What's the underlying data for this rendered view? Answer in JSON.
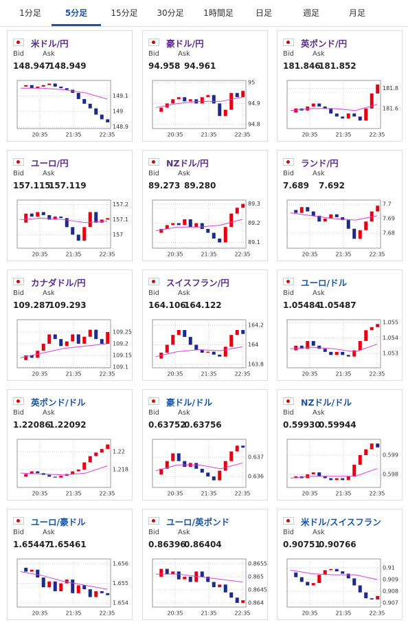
{
  "tabs": [
    "1分足",
    "5分足",
    "15分足",
    "30分足",
    "1時間足",
    "日足",
    "週足",
    "月足"
  ],
  "active_tab": 1,
  "bid_label": "Bid",
  "ask_label": "Ask",
  "x_labels": [
    "20:35",
    "21:35",
    "22:35"
  ],
  "up_color": "#e60012",
  "down_color": "#1c2a8c",
  "ma_color": "#d63fd6",
  "cards": [
    {
      "title": "米ドル/円",
      "color": "#5b2c8f",
      "bid": "148.947",
      "ask": "148.949",
      "ylim": [
        148.89,
        149.2
      ],
      "yticks": [
        149.1,
        149,
        148.9
      ],
      "closes": [
        149.16,
        149.17,
        149.15,
        149.16,
        149.17,
        149.18,
        149.16,
        149.15,
        149.14,
        149.12,
        149.08,
        149.05,
        149.02,
        148.98,
        148.95,
        148.93
      ],
      "ma": [
        149.15,
        149.15,
        149.14,
        149.12,
        149.08
      ]
    },
    {
      "title": "豪ドル/円",
      "color": "#5b2c8f",
      "bid": "94.958",
      "ask": "94.961",
      "ylim": [
        94.78,
        95.01
      ],
      "yticks": [
        95,
        94.9,
        94.8
      ],
      "closes": [
        94.86,
        94.88,
        94.9,
        94.92,
        94.93,
        94.91,
        94.92,
        94.9,
        94.93,
        94.94,
        94.9,
        94.84,
        94.87,
        94.95,
        94.93,
        94.96
      ],
      "ma": [
        94.88,
        94.9,
        94.91,
        94.91,
        94.93
      ]
    },
    {
      "title": "英ポンド/円",
      "color": "#5b2c8f",
      "bid": "181.846",
      "ask": "181.852",
      "ylim": [
        181.4,
        181.88
      ],
      "yticks": [
        181.8,
        181.6
      ],
      "closes": [
        181.56,
        181.6,
        181.58,
        181.62,
        181.65,
        181.62,
        181.6,
        181.55,
        181.52,
        181.5,
        181.55,
        181.52,
        181.48,
        181.6,
        181.75,
        181.84
      ],
      "ma": [
        181.58,
        181.6,
        181.6,
        181.58,
        181.64
      ]
    },
    {
      "title": "ユーロ/円",
      "color": "#5b2c8f",
      "bid": "157.115",
      "ask": "157.119",
      "ylim": [
        156.91,
        157.23
      ],
      "yticks": [
        157.2,
        157.1,
        157
      ],
      "closes": [
        157.08,
        157.14,
        157.12,
        157.15,
        157.13,
        157.1,
        157.12,
        157.11,
        157.05,
        157.0,
        156.96,
        157.05,
        157.15,
        157.08,
        157.1,
        157.11
      ],
      "ma": [
        157.1,
        157.11,
        157.1,
        157.08,
        157.09
      ]
    },
    {
      "title": "NZドル/円",
      "color": "#5b2c8f",
      "bid": "89.273",
      "ask": "89.280",
      "ylim": [
        89.07,
        89.32
      ],
      "yticks": [
        89.3,
        89.2,
        89.1
      ],
      "closes": [
        89.15,
        89.17,
        89.19,
        89.2,
        89.19,
        89.22,
        89.18,
        89.2,
        89.17,
        89.15,
        89.12,
        89.1,
        89.18,
        89.25,
        89.28,
        89.3
      ],
      "ma": [
        89.16,
        89.18,
        89.18,
        89.19,
        89.22
      ]
    },
    {
      "title": "ランド/円",
      "color": "#5b2c8f",
      "bid": "7.689",
      "ask": "7.692",
      "ylim": [
        7.6695,
        7.7029
      ],
      "yticks": [
        7.7,
        7.69,
        7.68
      ],
      "closes": [
        7.696,
        7.694,
        7.698,
        7.695,
        7.692,
        7.688,
        7.69,
        7.693,
        7.691,
        7.689,
        7.683,
        7.676,
        7.682,
        7.688,
        7.695,
        7.699
      ],
      "ma": [
        7.694,
        7.692,
        7.69,
        7.689,
        7.692
      ]
    },
    {
      "title": "カナダドル/円",
      "color": "#5b2c8f",
      "bid": "109.287",
      "ask": "109.293",
      "ylim": [
        109.097,
        109.303
      ],
      "yticks": [
        109.25,
        109.2,
        109.15,
        109.1
      ],
      "closes": [
        109.13,
        109.15,
        109.14,
        109.17,
        109.2,
        109.24,
        109.22,
        109.19,
        109.21,
        109.24,
        109.2,
        109.23,
        109.26,
        109.22,
        109.2,
        109.25
      ],
      "ma": [
        109.14,
        109.16,
        109.18,
        109.19,
        109.2
      ]
    },
    {
      "title": "スイスフラン/円",
      "color": "#5b2c8f",
      "bid": "164.106",
      "ask": "164.122",
      "ylim": [
        163.766,
        164.255
      ],
      "yticks": [
        164.2,
        164,
        163.8
      ],
      "closes": [
        163.86,
        163.92,
        164.0,
        164.1,
        164.15,
        164.08,
        164.0,
        163.95,
        163.92,
        163.93,
        163.9,
        163.88,
        163.98,
        164.1,
        164.15,
        164.11
      ],
      "ma": [
        163.88,
        163.93,
        163.95,
        163.94,
        163.98
      ]
    },
    {
      "title": "ユーロ/ドル",
      "color": "#1a56a6",
      "bid": "1.05484",
      "ask": "1.05487",
      "ylim": [
        1.05207,
        1.05518
      ],
      "yticks": [
        1.055,
        1.054,
        1.053
      ],
      "closes": [
        1.0532,
        1.0535,
        1.0533,
        1.0538,
        1.0535,
        1.0533,
        1.0531,
        1.0529,
        1.0531,
        1.0529,
        1.0528,
        1.0532,
        1.0538,
        1.0545,
        1.0547,
        1.0549
      ],
      "ma": [
        1.0533,
        1.0534,
        1.0533,
        1.0531,
        1.0536
      ]
    },
    {
      "title": "英ポンド/ドル",
      "color": "#1a56a6",
      "bid": "1.22086",
      "ask": "1.22092",
      "ylim": [
        1.216,
        1.22138
      ],
      "yticks": [
        1.22,
        1.218
      ],
      "closes": [
        1.2172,
        1.2175,
        1.2178,
        1.2176,
        1.2174,
        1.2172,
        1.2171,
        1.2173,
        1.2175,
        1.2178,
        1.218,
        1.2188,
        1.2195,
        1.2199,
        1.2203,
        1.2208
      ],
      "ma": [
        1.2176,
        1.2175,
        1.2174,
        1.2176,
        1.2184
      ]
    },
    {
      "title": "豪ドル/ドル",
      "color": "#1a56a6",
      "bid": "0.63752",
      "ask": "0.63756",
      "ylim": [
        0.63543,
        0.63793
      ],
      "yticks": [
        0.637,
        0.636
      ],
      "closes": [
        0.6361,
        0.6364,
        0.6368,
        0.6372,
        0.6368,
        0.6365,
        0.6367,
        0.6364,
        0.6362,
        0.636,
        0.6358,
        0.6363,
        0.6368,
        0.6373,
        0.6376,
        0.6375
      ],
      "ma": [
        0.6363,
        0.6366,
        0.6366,
        0.6364,
        0.6367
      ]
    },
    {
      "title": "NZドル/ドル",
      "color": "#1a56a6",
      "bid": "0.59930",
      "ask": "0.59944",
      "ylim": [
        0.59732,
        0.59982
      ],
      "yticks": [
        0.599,
        0.598
      ],
      "closes": [
        0.5978,
        0.5979,
        0.5978,
        0.598,
        0.5981,
        0.5979,
        0.5978,
        0.5977,
        0.5978,
        0.5977,
        0.5979,
        0.5985,
        0.599,
        0.5993,
        0.5996,
        0.5994
      ],
      "ma": [
        0.5978,
        0.5979,
        0.5979,
        0.5979,
        0.5983
      ]
    },
    {
      "title": "ユーロ/豪ドル",
      "color": "#1a56a6",
      "bid": "1.65447",
      "ask": "1.65461",
      "ylim": [
        1.65379,
        1.65625
      ],
      "yticks": [
        1.656,
        1.655,
        1.654
      ],
      "closes": [
        1.6558,
        1.6556,
        1.6557,
        1.6553,
        1.6548,
        1.6551,
        1.6546,
        1.655,
        1.6552,
        1.6545,
        1.6549,
        1.6547,
        1.6543,
        1.6546,
        1.6545,
        1.6544
      ],
      "ma": [
        1.6556,
        1.6554,
        1.6551,
        1.6549,
        1.6547
      ]
    },
    {
      "title": "ユーロ/英ポンド",
      "color": "#1a56a6",
      "bid": "0.86396",
      "ask": "0.86404",
      "ylim": [
        0.86384,
        0.86568
      ],
      "yticks": [
        0.8655,
        0.865,
        0.8645,
        0.864
      ],
      "closes": [
        0.865,
        0.8653,
        0.8651,
        0.8652,
        0.8649,
        0.865,
        0.8648,
        0.8652,
        0.865,
        0.8648,
        0.8646,
        0.8647,
        0.8644,
        0.8642,
        0.864,
        0.8641
      ],
      "ma": [
        0.8651,
        0.8651,
        0.865,
        0.8649,
        0.8648
      ]
    },
    {
      "title": "米ドル/スイスフラン",
      "color": "#1a56a6",
      "bid": "0.90751",
      "ask": "0.90766",
      "ylim": [
        0.90665,
        0.91076
      ],
      "yticks": [
        0.91,
        0.909,
        0.908,
        0.907
      ],
      "closes": [
        0.9096,
        0.9092,
        0.9088,
        0.9085,
        0.9087,
        0.9094,
        0.9098,
        0.9099,
        0.9097,
        0.9095,
        0.9091,
        0.9085,
        0.9079,
        0.9074,
        0.9073,
        0.9076
      ],
      "ma": [
        0.9098,
        0.9095,
        0.9094,
        0.9094,
        0.909
      ]
    }
  ]
}
